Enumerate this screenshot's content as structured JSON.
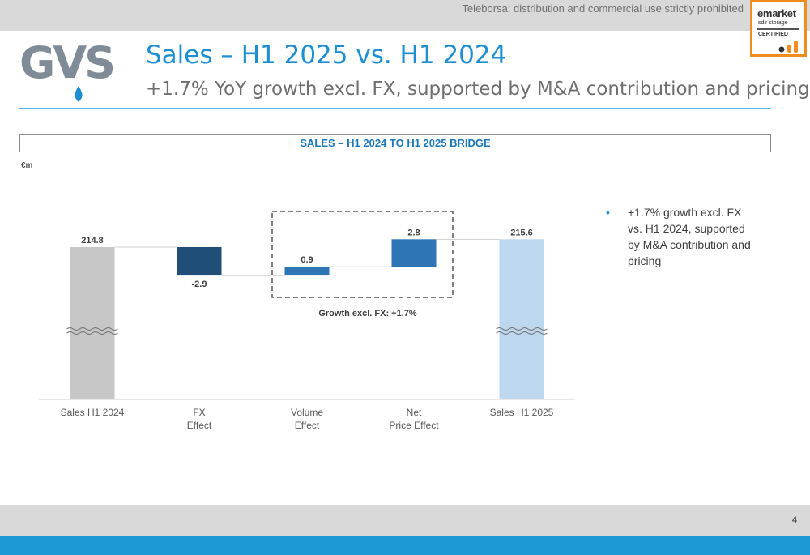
{
  "header": {
    "disclaimer": "Teleborsa: distribution and commercial use strictly prohibited",
    "logo_text": "GVS",
    "title": "Sales – H1 2025 vs. H1 2024",
    "subtitle": "+1.7% YoY growth excl. FX, supported by M&A contribution and pricing"
  },
  "badge": {
    "name": "emarket",
    "sub": "sdir storage",
    "cert": "CERTIFIED",
    "border_color": "#f28c1e"
  },
  "chart_data": {
    "type": "bar",
    "title": "SALES – H1 2024 TO H1 2025 BRIDGE",
    "unit": "€m",
    "categories": [
      [
        "Sales H1 2024"
      ],
      [
        "FX",
        "Effect"
      ],
      [
        "Volume",
        "Effect"
      ],
      [
        "Net",
        "Price Effect"
      ],
      [
        "Sales H1 2025"
      ]
    ],
    "values": [
      214.8,
      -2.9,
      0.9,
      2.8,
      215.6
    ],
    "data_labels": [
      "214.8",
      "-2.9",
      "0.9",
      "2.8",
      "215.6"
    ],
    "kinds": [
      "total",
      "delta",
      "delta",
      "delta",
      "total"
    ],
    "colors": [
      "#c7c7c7",
      "#1f4e79",
      "#2e75b6",
      "#2e75b6",
      "#bdd7ee"
    ],
    "axis_break": true,
    "annotation": "Growth excl. FX: +1.7%"
  },
  "bullets": [
    "+1.7% growth excl. FX vs. H1 2024, supported by M&A contribution and pricing"
  ],
  "footer": {
    "page": "4"
  }
}
